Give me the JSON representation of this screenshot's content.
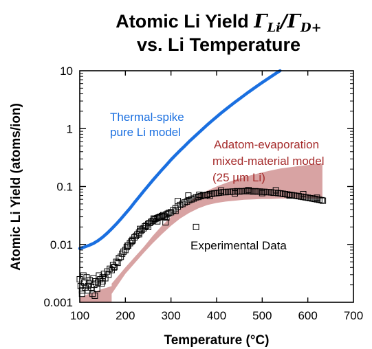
{
  "chart_data": {
    "type": "scatter",
    "title": {
      "line1_prefix": "Atomic Li Yield ",
      "gamma": "Γ",
      "sub1": "Li",
      "slash": "/",
      "sub2": "D+",
      "line2": "vs. Li Temperature"
    },
    "xlabel": "Temperature (°C)",
    "ylabel": "Atomic Li Yield (atoms/ion)",
    "xlim": [
      100,
      700
    ],
    "ylim": [
      0.001,
      10
    ],
    "yscale": "log",
    "grid": false,
    "x_ticks": [
      100,
      200,
      300,
      400,
      500,
      600,
      700
    ],
    "x_tick_labels": [
      "100",
      "200",
      "300",
      "400",
      "500",
      "600",
      "700"
    ],
    "y_ticks": [
      0.001,
      0.01,
      0.1,
      1,
      10
    ],
    "y_tick_labels": [
      "0.001",
      "0.01",
      "0.1",
      "1",
      "10"
    ],
    "colors": {
      "thermal": "#1a6fe0",
      "adatom_band": "#d8a3a3",
      "adatom_text": "#a52a2a",
      "experimental": "#000000"
    },
    "series": [
      {
        "name": "Thermal-spike pure Li model",
        "kind": "line",
        "x": [
          100,
          110,
          120,
          130,
          140,
          150,
          160,
          170,
          180,
          190,
          200,
          210,
          220,
          230,
          240,
          250,
          260,
          270,
          280,
          290,
          300,
          310,
          320,
          330,
          340,
          350,
          360,
          370,
          380,
          390,
          400,
          410,
          420,
          430,
          440,
          450,
          460,
          470,
          480,
          490,
          500,
          510,
          520,
          530,
          540,
          550,
          560
        ],
        "y": [
          0.0085,
          0.009,
          0.0096,
          0.0104,
          0.0116,
          0.0133,
          0.0156,
          0.0186,
          0.0225,
          0.0275,
          0.034,
          0.042,
          0.053,
          0.066,
          0.083,
          0.103,
          0.128,
          0.158,
          0.194,
          0.236,
          0.29,
          0.35,
          0.42,
          0.5,
          0.6,
          0.71,
          0.84,
          0.99,
          1.17,
          1.37,
          1.6,
          1.86,
          2.15,
          2.48,
          2.85,
          3.27,
          3.74,
          4.27,
          4.86,
          5.52,
          6.26,
          7.08,
          7.99,
          9.0,
          10.1,
          11.4,
          12.8
        ]
      },
      {
        "name": "Adatom-evaporation mixed-material model (25 µm Li)",
        "kind": "band",
        "x": [
          100,
          120,
          140,
          160,
          170,
          170,
          200,
          220,
          240,
          260,
          280,
          300,
          320,
          340,
          360,
          380,
          400,
          420,
          440,
          460,
          480,
          500,
          520,
          540,
          560,
          580,
          600,
          620,
          632
        ],
        "y_low": [
          0.001,
          0.001,
          0.001,
          0.001,
          0.001,
          0.0014,
          0.0031,
          0.0047,
          0.0071,
          0.0105,
          0.015,
          0.021,
          0.028,
          0.035,
          0.042,
          0.048,
          0.052,
          0.055,
          0.057,
          0.059,
          0.06,
          0.061,
          0.061,
          0.062,
          0.062,
          0.062,
          0.062,
          0.062,
          0.062
        ],
        "y_high": [
          0.0012,
          0.0014,
          0.0016,
          0.0018,
          0.0019,
          0.0021,
          0.004,
          0.006,
          0.009,
          0.014,
          0.021,
          0.03,
          0.042,
          0.055,
          0.07,
          0.085,
          0.1,
          0.115,
          0.13,
          0.145,
          0.16,
          0.175,
          0.19,
          0.205,
          0.215,
          0.225,
          0.235,
          0.245,
          0.25
        ]
      },
      {
        "name": "Experimental Data",
        "kind": "scatter",
        "x": [
          100,
          102,
          105,
          108,
          110,
          112,
          115,
          118,
          120,
          122,
          125,
          128,
          130,
          132,
          135,
          138,
          140,
          142,
          145,
          148,
          150,
          153,
          156,
          160,
          163,
          166,
          170,
          173,
          176,
          180,
          183,
          186,
          190,
          193,
          196,
          200,
          203,
          206,
          210,
          213,
          216,
          220,
          223,
          226,
          230,
          233,
          236,
          240,
          243,
          246,
          250,
          253,
          256,
          260,
          263,
          266,
          270,
          273,
          276,
          280,
          283,
          286,
          290,
          293,
          296,
          300,
          305,
          310,
          315,
          320,
          325,
          330,
          335,
          340,
          345,
          350,
          355,
          360,
          365,
          370,
          375,
          380,
          385,
          390,
          395,
          400,
          405,
          410,
          415,
          420,
          425,
          430,
          435,
          440,
          445,
          450,
          455,
          460,
          465,
          470,
          475,
          480,
          485,
          490,
          495,
          500,
          505,
          510,
          515,
          520,
          525,
          530,
          535,
          540,
          545,
          550,
          555,
          560,
          565,
          570,
          575,
          580,
          585,
          590,
          595,
          600,
          605,
          610,
          615,
          620,
          625,
          630,
          633,
          105,
          118,
          133,
          150,
          175,
          205,
          232,
          262,
          288,
          315,
          338,
          362,
          385,
          410,
          440,
          470,
          500,
          530,
          560,
          590,
          620,
          355,
          310,
          290,
          270,
          250,
          230,
          215
        ],
        "y": [
          0.0025,
          0.0019,
          0.0016,
          0.0029,
          0.0022,
          0.0018,
          0.0027,
          0.0016,
          0.0021,
          0.0024,
          0.0018,
          0.0014,
          0.0026,
          0.002,
          0.0023,
          0.0017,
          0.0022,
          0.0029,
          0.0025,
          0.0021,
          0.0027,
          0.0031,
          0.0026,
          0.0034,
          0.003,
          0.0038,
          0.0036,
          0.0044,
          0.0041,
          0.005,
          0.0048,
          0.0058,
          0.0061,
          0.0069,
          0.0075,
          0.008,
          0.009,
          0.0095,
          0.0105,
          0.0112,
          0.012,
          0.0132,
          0.014,
          0.0148,
          0.016,
          0.017,
          0.0178,
          0.019,
          0.0205,
          0.0212,
          0.0225,
          0.0235,
          0.0245,
          0.0255,
          0.0268,
          0.0275,
          0.0285,
          0.0292,
          0.03,
          0.031,
          0.032,
          0.0305,
          0.033,
          0.034,
          0.035,
          0.036,
          0.039,
          0.042,
          0.045,
          0.048,
          0.05,
          0.053,
          0.055,
          0.058,
          0.06,
          0.062,
          0.065,
          0.066,
          0.068,
          0.07,
          0.071,
          0.072,
          0.074,
          0.075,
          0.076,
          0.077,
          0.078,
          0.079,
          0.08,
          0.08,
          0.081,
          0.081,
          0.082,
          0.082,
          0.083,
          0.082,
          0.083,
          0.083,
          0.084,
          0.083,
          0.083,
          0.082,
          0.083,
          0.082,
          0.082,
          0.081,
          0.081,
          0.08,
          0.08,
          0.079,
          0.078,
          0.078,
          0.077,
          0.076,
          0.075,
          0.074,
          0.073,
          0.072,
          0.071,
          0.07,
          0.069,
          0.068,
          0.067,
          0.066,
          0.065,
          0.064,
          0.063,
          0.062,
          0.061,
          0.06,
          0.059,
          0.058,
          0.057,
          0.0014,
          0.0019,
          0.0013,
          0.0023,
          0.004,
          0.0095,
          0.0185,
          0.028,
          0.024,
          0.056,
          0.07,
          0.072,
          0.069,
          0.085,
          0.076,
          0.087,
          0.077,
          0.086,
          0.07,
          0.074,
          0.064,
          0.02,
          0.038,
          0.029,
          0.025,
          0.02,
          0.015,
          0.0115
        ]
      }
    ],
    "annotations": {
      "thermal_line1": "Thermal-spike",
      "thermal_line2": "pure Li model",
      "adatom_line1": "Adatom-evaporation",
      "adatom_line2": "mixed-material model",
      "adatom_line3": "(25 µm Li)",
      "experimental": "Experimental Data"
    }
  }
}
